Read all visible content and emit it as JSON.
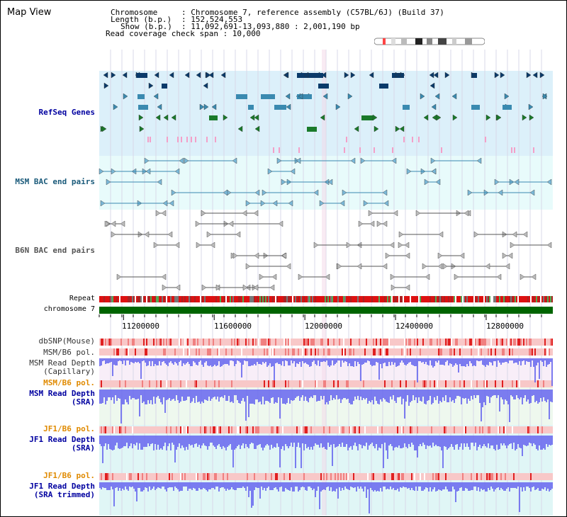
{
  "window": {
    "title": "Map View"
  },
  "header": {
    "chromosome_label": "Chromosome",
    "chromosome_value": ": Chromosome 7, reference assembly (C57BL/6J) (Build 37)",
    "length_label": "Length (b.p.)",
    "length_value": ": 152,524,553",
    "show_label": "Show (b.p.)",
    "show_value": ": 11,092,691-13,093,880 : 2,001,190 bp",
    "coverage_label": "Read coverage check span : 10,000"
  },
  "tracks": {
    "refseq": "RefSeq Genes",
    "msm_bac": "MSM BAC end pairs",
    "b6n_bac": "B6N BAC end pairs",
    "repeat": "Repeat",
    "chromosome": "chromosome 7",
    "dbsnp": "dbSNP(Mouse)",
    "msm_b6_pol_1": "MSM/B6 pol.",
    "msm_read_depth_cap": "MSM Read Depth\n(Capillary)",
    "msm_b6_pol_2": "MSM/B6 pol.",
    "msm_read_depth_sra": "MSM Read Depth\n(SRA)",
    "jf1_b6_pol_1": "JF1/B6 pol.",
    "jf1_read_depth_sra": "JF1 Read Depth\n(SRA)",
    "jf1_b6_pol_2": "JF1/B6 pol.",
    "jf1_read_depth_trim": "JF1 Read Depth\n(SRA trimmed)"
  },
  "axis": {
    "ticks": [
      "11200000",
      "11600000",
      "12000000",
      "12400000",
      "12800000"
    ],
    "tick_values": [
      11200000,
      11600000,
      12000000,
      12400000,
      12800000
    ],
    "range": [
      11092691,
      13093880
    ]
  },
  "colors": {
    "refseq_bg": "#dcf0fa",
    "bac_bg": "#e8fbfb",
    "msm_read_bg": "#f8eef8",
    "sra_bg": "#eef8ee",
    "jf1_bg": "#e0f6f6",
    "chromosome": "#006400",
    "depth": "#6666ee",
    "pol": "#f4b0b0",
    "gene_dark": "#0a3a6a",
    "gene_teal": "#3a8ab0",
    "gene_green": "#1a7a2a",
    "gene_pink": "#f4a0c8",
    "label_blue": "#0000a0",
    "label_orange": "#e08a00",
    "label_teal": "#1a5a7a"
  }
}
